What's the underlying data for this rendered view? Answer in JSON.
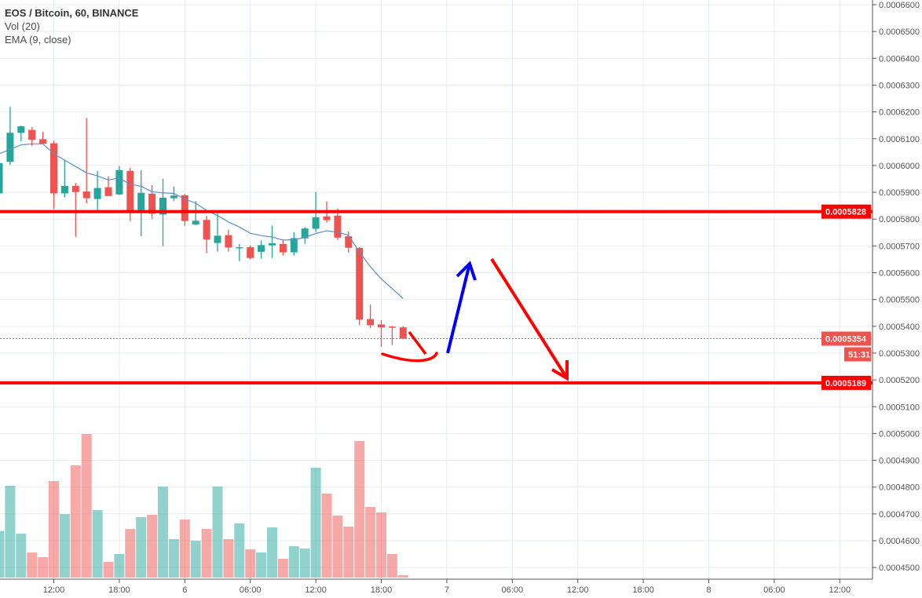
{
  "header": {
    "symbol_line": "EOS / Bitcoin, 60, BINANCE",
    "volume_indicator": "Vol (20)",
    "ema_indicator": "EMA (9, close)"
  },
  "chart_data": {
    "type": "candlestick",
    "title": "EOS / Bitcoin, 60, BINANCE",
    "interval_minutes": 60,
    "first_candle_time": "5 07:00",
    "ylim": [
      0.000445,
      0.00066
    ],
    "grid": true,
    "colors": {
      "up": "#26a69a",
      "down": "#ef5350",
      "ema": "#5b8fc7",
      "level": "#ff0000",
      "up_arrow": "#0000ff",
      "down_arrow": "#ff0000"
    },
    "open": [
      0.0005896,
      0.0006014,
      0.0006122,
      0.0006133,
      0.0006098,
      0.0006083,
      0.0005896,
      0.0005924,
      0.0005903,
      0.0005875,
      0.0005919,
      0.0005892,
      0.000598,
      0.0005834,
      0.0005895,
      0.0005817,
      0.0005878,
      0.0005889,
      0.000578,
      0.0005797,
      0.0005711,
      0.000574,
      0.0005694,
      0.0005695,
      0.0005678,
      0.0005702,
      0.0005707,
      0.0005676,
      0.0005728,
      0.0005764,
      0.000581,
      0.0005813,
      0.0005736,
      0.0005692,
      0.0005427,
      0.0005407,
      0.0005399,
      0.0005396
    ],
    "high": [
      0.000603,
      0.000622,
      0.0006149,
      0.0006143,
      0.0006126,
      0.0006092,
      0.0006022,
      0.0005935,
      0.0006177,
      0.0005979,
      0.000596,
      0.0005998,
      0.0005992,
      0.0005983,
      0.0005927,
      0.0005951,
      0.0005922,
      0.0005893,
      0.0005867,
      0.0005812,
      0.0005822,
      0.000576,
      0.0005707,
      0.0005702,
      0.0005721,
      0.0005776,
      0.0005722,
      0.0005751,
      0.000577,
      0.0005901,
      0.0005866,
      0.0005839,
      0.0005754,
      0.0005695,
      0.0005481,
      0.0005423,
      0.0005401,
      0.0005401
    ],
    "low": [
      0.000589,
      0.0006002,
      0.000609,
      0.0006073,
      0.0006081,
      0.0005837,
      0.0005881,
      0.0005734,
      0.0005859,
      0.0005831,
      0.0005886,
      0.000589,
      0.0005792,
      0.0005736,
      0.0005801,
      0.0005699,
      0.0005867,
      0.0005775,
      0.0005777,
      0.0005673,
      0.0005679,
      0.0005679,
      0.0005643,
      0.000565,
      0.0005652,
      0.0005655,
      0.0005664,
      0.0005664,
      0.0005708,
      0.0005752,
      0.0005787,
      0.0005722,
      0.0005675,
      0.0005404,
      0.0005393,
      0.0005323,
      0.000533,
      0.0005354
    ],
    "close": [
      0.0006009,
      0.0006122,
      0.0006146,
      0.0006096,
      0.0006081,
      0.0005896,
      0.0005924,
      0.0005901,
      0.0005878,
      0.0005916,
      0.0005886,
      0.0005983,
      0.0005831,
      0.0005898,
      0.000582,
      0.000588,
      0.0005888,
      0.0005793,
      0.0005794,
      0.0005724,
      0.0005738,
      0.0005694,
      0.0005695,
      0.0005655,
      0.0005703,
      0.000571,
      0.0005676,
      0.0005729,
      0.0005765,
      0.0005807,
      0.0005796,
      0.0005731,
      0.0005693,
      0.0005425,
      0.0005404,
      0.0005396,
      0.0005396,
      0.0005354
    ],
    "volume": [
      178,
      351,
      168,
      96,
      78,
      369,
      243,
      429,
      549,
      258,
      60,
      90,
      186,
      231,
      240,
      348,
      147,
      222,
      141,
      186,
      348,
      147,
      207,
      108,
      96,
      192,
      72,
      120,
      111,
      420,
      321,
      237,
      195,
      522,
      270,
      249,
      90,
      9
    ],
    "ema_period": 9,
    "price_ticks": [
      "0.0006600",
      "0.0006500",
      "0.0006400",
      "0.0006300",
      "0.0006200",
      "0.0006100",
      "0.0006000",
      "0.0005900",
      "0.0005800",
      "0.0005700",
      "0.0005600",
      "0.0005500",
      "0.0005400",
      "0.0005300",
      "0.0005200",
      "0.0005100",
      "0.0005000",
      "0.0004900",
      "0.0004800",
      "0.0004700",
      "0.0004600",
      "0.0004500"
    ],
    "time_ticks": [
      "12:00",
      "18:00",
      "6",
      "06:00",
      "12:00",
      "18:00",
      "7",
      "06:00",
      "12:00",
      "18:00",
      "8",
      "06:00",
      "12:00"
    ],
    "levels": [
      {
        "label": "0.0005828",
        "value": 0.0005828
      },
      {
        "label": "0.0005189",
        "value": 0.0005189
      }
    ],
    "last_price": {
      "label": "0.0005354",
      "value": 0.0005354
    },
    "countdown": "51:31"
  }
}
